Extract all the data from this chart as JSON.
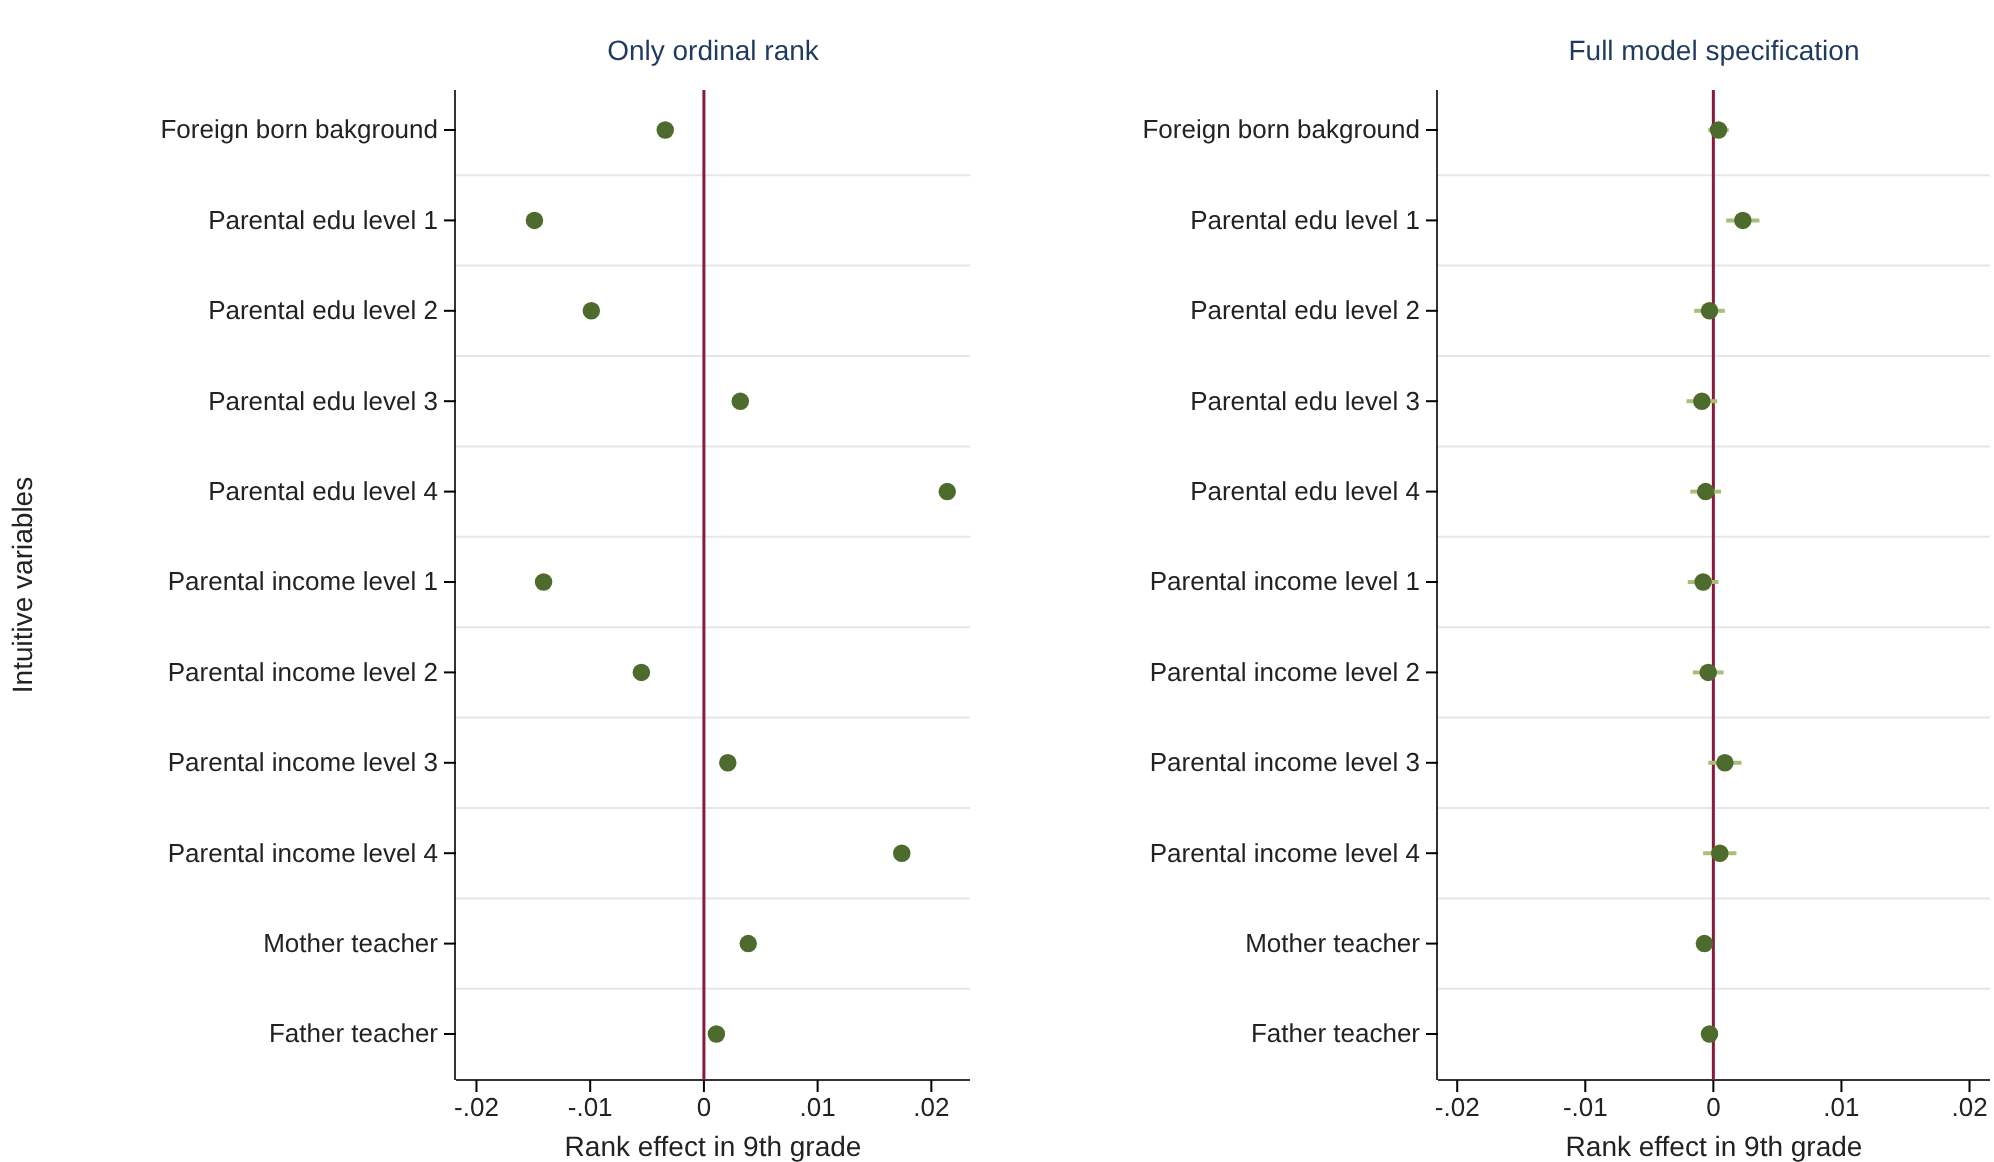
{
  "chart_data": [
    {
      "type": "scatter",
      "orientation": "horizontal",
      "title": "Only ordinal rank",
      "xlabel": "Rank effect in 9th grade",
      "ylabel": "Intuitive variables",
      "categories": [
        "Foreign born bakground",
        "Parental edu level 1",
        "Parental edu level 2",
        "Parental edu level 3",
        "Parental edu level 4",
        "Parental income level 1",
        "Parental income level 2",
        "Parental income level 3",
        "Parental income level 4",
        "Mother teacher",
        "Father teacher"
      ],
      "series": [
        {
          "color": "#4e6b2e",
          "values": [
            -0.0034,
            -0.0149,
            -0.0099,
            0.0032,
            0.0214,
            -0.0141,
            -0.0055,
            0.0021,
            0.0174,
            0.0039,
            0.0011
          ]
        }
      ],
      "xlim": [
        -0.0218,
        0.0234
      ],
      "xticks": [
        {
          "value": -0.02,
          "label": "-.02"
        },
        {
          "value": -0.01,
          "label": "-.01"
        },
        0,
        {
          "value": 0.01,
          "label": ".01"
        },
        {
          "value": 0.02,
          "label": ".02"
        }
      ],
      "grid": "y",
      "marker": "circle",
      "ref_lines": [
        {
          "axis": "x",
          "value": 0,
          "color": "#8b1a3a"
        }
      ]
    },
    {
      "type": "scatter",
      "orientation": "horizontal",
      "title": "Full model specification",
      "xlabel": "Rank effect in 9th grade",
      "categories": [
        "Foreign born bakground",
        "Parental edu level 1",
        "Parental edu level 2",
        "Parental edu level 3",
        "Parental edu level 4",
        "Parental income level 1",
        "Parental income level 2",
        "Parental income level 3",
        "Parental income level 4",
        "Mother teacher",
        "Father teacher"
      ],
      "series": [
        {
          "color": "#4e6b2e",
          "values": [
            0.0004,
            0.0023,
            -0.0003,
            -0.0009,
            -0.0006,
            -0.0008,
            -0.0004,
            0.0009,
            0.0005,
            -0.0007,
            -0.0003
          ],
          "errors": [
            0.0008,
            0.0013,
            0.0012,
            0.0012,
            0.0012,
            0.0012,
            0.0012,
            0.0013,
            0.0013,
            0.0006,
            0.0006
          ]
        }
      ],
      "xlim": [
        -0.0215,
        0.0216
      ],
      "xticks": [
        {
          "value": -0.02,
          "label": "-.02"
        },
        {
          "value": -0.01,
          "label": "-.01"
        },
        0,
        {
          "value": 0.01,
          "label": ".01"
        },
        {
          "value": 0.02,
          "label": ".02"
        }
      ],
      "grid": "y",
      "marker": "circle",
      "ref_lines": [
        {
          "axis": "x",
          "value": 0,
          "color": "#8b1a3a"
        }
      ]
    }
  ]
}
